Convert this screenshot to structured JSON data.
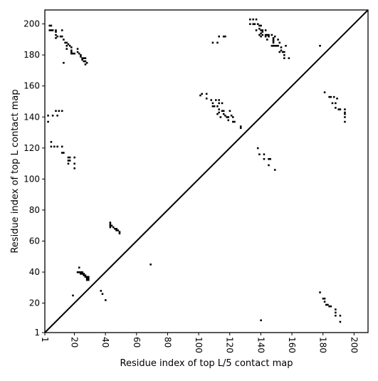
{
  "chart_data": {
    "type": "scatter",
    "xlabel": "Residue index of top L/5 contact map",
    "ylabel": "Residue index of top L contact map",
    "xlim": [
      1,
      209
    ],
    "ylim": [
      1,
      209
    ],
    "xticks": [
      1,
      20,
      40,
      60,
      80,
      100,
      120,
      140,
      160,
      180,
      200
    ],
    "yticks": [
      1,
      20,
      40,
      60,
      80,
      100,
      120,
      140,
      160,
      180,
      200
    ],
    "x_tick_labels": [
      "1",
      "20",
      "40",
      "60",
      "80",
      "100",
      "120",
      "140",
      "160",
      "180",
      "200"
    ],
    "y_tick_labels": [
      "1",
      "20",
      "40",
      "60",
      "80",
      "100",
      "120",
      "140",
      "160",
      "180",
      "200"
    ],
    "x_tick_label_rotation": 90,
    "grid": false,
    "diagonal": true,
    "marker": "square",
    "marker_color": "#000000",
    "series": [
      {
        "points": [
          [
            4,
            199
          ],
          [
            5,
            199
          ],
          [
            4,
            196
          ],
          [
            5,
            196
          ],
          [
            8,
            196
          ],
          [
            8,
            195
          ],
          [
            8,
            193
          ],
          [
            9,
            192
          ],
          [
            8,
            191
          ],
          [
            12,
            196
          ],
          [
            12,
            192
          ],
          [
            11,
            192
          ],
          [
            13,
            190
          ],
          [
            14,
            188
          ],
          [
            15,
            188
          ],
          [
            16,
            187
          ],
          [
            15,
            186
          ],
          [
            15,
            184
          ],
          [
            17,
            186
          ],
          [
            18,
            185
          ],
          [
            18,
            183
          ],
          [
            18,
            182
          ],
          [
            18,
            181
          ],
          [
            19,
            181
          ],
          [
            20,
            181
          ],
          [
            22,
            184
          ],
          [
            22,
            182
          ],
          [
            23,
            181
          ],
          [
            24,
            180
          ],
          [
            24,
            179
          ],
          [
            25,
            178
          ],
          [
            26,
            178
          ],
          [
            27,
            178
          ],
          [
            25,
            177
          ],
          [
            26,
            176
          ],
          [
            27,
            176
          ],
          [
            28,
            175
          ],
          [
            27,
            174
          ],
          [
            13,
            175
          ],
          [
            6,
            196
          ],
          [
            3,
            141
          ],
          [
            6,
            141
          ],
          [
            9,
            141
          ],
          [
            8,
            144
          ],
          [
            10,
            144
          ],
          [
            12,
            144
          ],
          [
            3,
            137
          ],
          [
            5,
            124
          ],
          [
            5,
            121
          ],
          [
            7,
            121
          ],
          [
            9,
            121
          ],
          [
            12,
            117
          ],
          [
            13,
            117
          ],
          [
            12,
            121
          ],
          [
            16,
            114
          ],
          [
            17,
            114
          ],
          [
            16,
            112
          ],
          [
            17,
            112
          ],
          [
            16,
            110
          ],
          [
            20,
            114
          ],
          [
            20,
            110
          ],
          [
            20,
            107
          ],
          [
            43,
            72
          ],
          [
            43,
            71
          ],
          [
            43,
            70
          ],
          [
            44,
            70
          ],
          [
            45,
            69
          ],
          [
            46,
            68
          ],
          [
            47,
            68
          ],
          [
            47,
            67
          ],
          [
            48,
            67
          ],
          [
            49,
            66
          ],
          [
            49,
            65
          ],
          [
            43,
            69
          ],
          [
            69,
            45
          ],
          [
            23,
            43
          ],
          [
            22,
            40
          ],
          [
            23,
            40
          ],
          [
            24,
            40
          ],
          [
            24,
            39
          ],
          [
            25,
            39
          ],
          [
            25,
            40
          ],
          [
            26,
            39
          ],
          [
            26,
            38
          ],
          [
            27,
            38
          ],
          [
            27,
            37
          ],
          [
            28,
            37
          ],
          [
            29,
            37
          ],
          [
            28,
            36
          ],
          [
            29,
            36
          ],
          [
            28,
            35
          ],
          [
            29,
            35
          ],
          [
            19,
            25
          ],
          [
            37,
            28
          ],
          [
            38,
            26
          ],
          [
            40,
            22
          ],
          [
            101,
            154
          ],
          [
            102,
            155
          ],
          [
            105,
            155
          ],
          [
            105,
            152
          ],
          [
            108,
            151
          ],
          [
            109,
            149
          ],
          [
            109,
            147
          ],
          [
            110,
            147
          ],
          [
            112,
            147
          ],
          [
            113,
            149
          ],
          [
            113,
            151
          ],
          [
            113,
            145
          ],
          [
            113,
            143
          ],
          [
            112,
            142
          ],
          [
            114,
            140
          ],
          [
            115,
            144
          ],
          [
            116,
            144
          ],
          [
            116,
            142
          ],
          [
            117,
            141
          ],
          [
            118,
            140
          ],
          [
            119,
            140
          ],
          [
            119,
            138
          ],
          [
            120,
            144
          ],
          [
            121,
            141
          ],
          [
            122,
            140
          ],
          [
            122,
            137
          ],
          [
            123,
            137
          ],
          [
            127,
            134
          ],
          [
            127,
            133
          ],
          [
            115,
            149
          ],
          [
            111,
            151
          ],
          [
            109,
            188
          ],
          [
            112,
            188
          ],
          [
            113,
            192
          ],
          [
            116,
            192
          ],
          [
            117,
            192
          ],
          [
            133,
            203
          ],
          [
            135,
            203
          ],
          [
            137,
            203
          ],
          [
            133,
            200
          ],
          [
            135,
            200
          ],
          [
            136,
            200
          ],
          [
            138,
            200
          ],
          [
            139,
            199
          ],
          [
            140,
            199
          ],
          [
            139,
            197
          ],
          [
            140,
            196
          ],
          [
            141,
            196
          ],
          [
            141,
            195
          ],
          [
            143,
            196
          ],
          [
            140,
            194
          ],
          [
            141,
            193
          ],
          [
            143,
            193
          ],
          [
            144,
            193
          ],
          [
            145,
            193
          ],
          [
            147,
            193
          ],
          [
            148,
            191
          ],
          [
            148,
            190
          ],
          [
            148,
            189
          ],
          [
            148,
            188
          ],
          [
            148,
            186
          ],
          [
            149,
            186
          ],
          [
            150,
            186
          ],
          [
            151,
            186
          ],
          [
            152,
            188
          ],
          [
            151,
            190
          ],
          [
            149,
            192
          ],
          [
            145,
            192
          ],
          [
            143,
            192
          ],
          [
            140,
            192
          ],
          [
            139,
            193
          ],
          [
            137,
            196
          ],
          [
            144,
            190
          ],
          [
            147,
            186
          ],
          [
            153,
            185
          ],
          [
            153,
            183
          ],
          [
            154,
            182
          ],
          [
            155,
            182
          ],
          [
            155,
            180
          ],
          [
            155,
            178
          ],
          [
            156,
            186
          ],
          [
            158,
            178
          ],
          [
            152,
            182
          ],
          [
            138,
            120
          ],
          [
            139,
            116
          ],
          [
            142,
            116
          ],
          [
            142,
            113
          ],
          [
            145,
            113
          ],
          [
            146,
            113
          ],
          [
            145,
            109
          ],
          [
            149,
            106
          ],
          [
            178,
            186
          ],
          [
            181,
            156
          ],
          [
            184,
            153
          ],
          [
            185,
            153
          ],
          [
            187,
            153
          ],
          [
            186,
            149
          ],
          [
            188,
            149
          ],
          [
            188,
            146
          ],
          [
            190,
            145
          ],
          [
            191,
            145
          ],
          [
            194,
            145
          ],
          [
            194,
            143
          ],
          [
            194,
            142
          ],
          [
            194,
            140
          ],
          [
            194,
            137
          ],
          [
            189,
            152
          ],
          [
            178,
            27
          ],
          [
            180,
            23
          ],
          [
            181,
            23
          ],
          [
            182,
            19
          ],
          [
            183,
            19
          ],
          [
            184,
            18
          ],
          [
            185,
            18
          ],
          [
            188,
            16
          ],
          [
            188,
            14
          ],
          [
            188,
            12
          ],
          [
            191,
            12
          ],
          [
            191,
            8
          ],
          [
            181,
            21
          ],
          [
            140,
            9
          ]
        ]
      }
    ]
  }
}
